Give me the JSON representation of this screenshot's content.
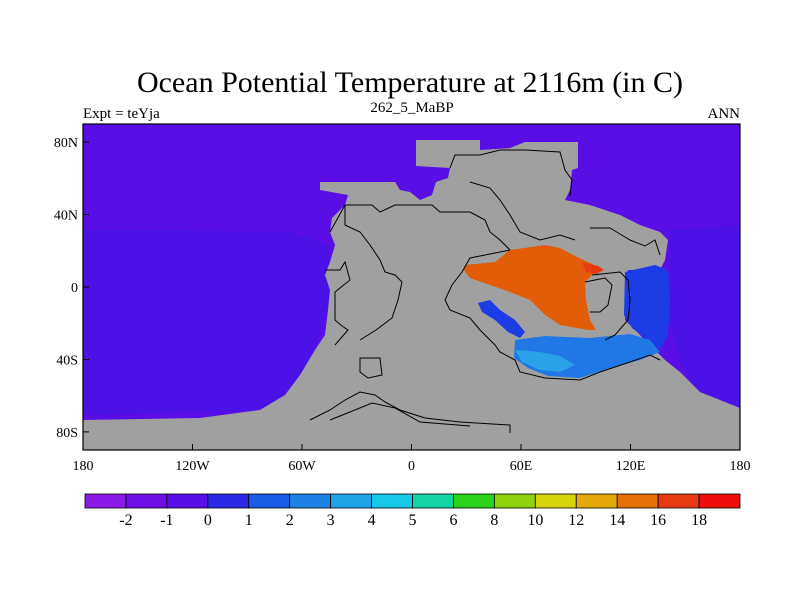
{
  "map": {
    "title": "Ocean Potential Temperature at 2116m (in C)",
    "left_string": "Expt = teYja",
    "center_string": "262_5_MaBP",
    "right_string": "ANN",
    "x_ticks": [
      "180",
      "120W",
      "60W",
      "0",
      "60E",
      "120E",
      "180"
    ],
    "y_ticks": [
      "80N",
      "40N",
      "0",
      "40S",
      "80S"
    ],
    "colors": {
      "ocean_cold": "#5a0ee6",
      "ocean_cool": "#4a12e6",
      "land": "#a0a0a0",
      "warm_pool": "#e35d08",
      "warm_hot": "#e83a10",
      "blue_1": "#1c3ce6",
      "blue_2": "#1f78e6",
      "blue_3": "#2aa2ea"
    }
  },
  "colorbar": {
    "colors": [
      "#8a1be6",
      "#6c10e6",
      "#5a0ee6",
      "#2b28e6",
      "#1a5ce6",
      "#1e82e6",
      "#1ea4e6",
      "#16c8e6",
      "#14d4a4",
      "#2ad21a",
      "#8ed20c",
      "#d6d40a",
      "#e4a808",
      "#e67008",
      "#e83a10",
      "#ee0e0e"
    ],
    "labels": [
      "-2",
      "-1",
      "0",
      "1",
      "2",
      "3",
      "4",
      "5",
      "6",
      "8",
      "10",
      "12",
      "14",
      "16",
      "18"
    ]
  }
}
